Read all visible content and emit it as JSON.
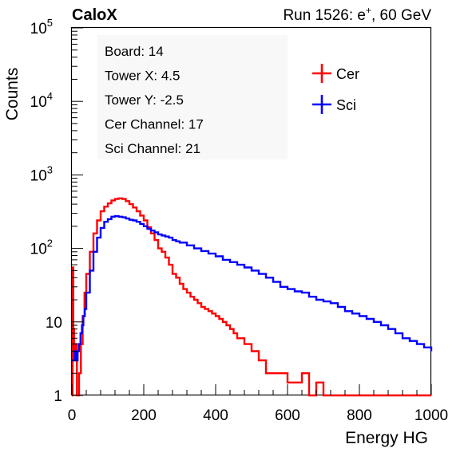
{
  "header": {
    "experiment": "CaloX",
    "run_info": "Run 1526: e",
    "run_sup": "+",
    "run_suffix": ", 60 GeV"
  },
  "info_box": {
    "lines": [
      "Board: 14",
      "Tower X: 4.5",
      "Tower Y: -2.5",
      "Cer Channel: 17",
      "Sci Channel: 21"
    ]
  },
  "chart_data": {
    "type": "line",
    "title": "",
    "xlabel": "Energy HG",
    "ylabel": "Counts",
    "xlim": [
      0,
      1000
    ],
    "ylim": [
      1,
      100000
    ],
    "yscale": "log",
    "grid": false,
    "legend_placement": "top-right",
    "x_ticks": [
      0,
      200,
      400,
      600,
      800,
      1000
    ],
    "x_tick_labels": [
      "0",
      "200",
      "400",
      "600",
      "800",
      "1000"
    ],
    "y_ticks": [
      {
        "value": 1,
        "label": "1",
        "exp": ""
      },
      {
        "value": 10,
        "label": "10",
        "exp": ""
      },
      {
        "value": 100,
        "label": "10",
        "exp": "2"
      },
      {
        "value": 1000,
        "label": "10",
        "exp": "3"
      },
      {
        "value": 10000,
        "label": "10",
        "exp": "4"
      },
      {
        "value": 100000,
        "label": "10",
        "exp": "5"
      }
    ],
    "series": [
      {
        "name": "Cer",
        "color": "#ff0000",
        "points": [
          [
            0,
            1
          ],
          [
            2,
            55
          ],
          [
            4,
            8
          ],
          [
            6,
            3
          ],
          [
            10,
            5
          ],
          [
            14,
            1
          ],
          [
            20,
            2
          ],
          [
            25,
            5
          ],
          [
            30,
            12
          ],
          [
            35,
            25
          ],
          [
            40,
            45
          ],
          [
            50,
            90
          ],
          [
            60,
            160
          ],
          [
            70,
            240
          ],
          [
            80,
            320
          ],
          [
            90,
            370
          ],
          [
            100,
            410
          ],
          [
            110,
            450
          ],
          [
            120,
            470
          ],
          [
            130,
            480
          ],
          [
            140,
            470
          ],
          [
            150,
            440
          ],
          [
            160,
            400
          ],
          [
            170,
            360
          ],
          [
            180,
            320
          ],
          [
            190,
            280
          ],
          [
            200,
            240
          ],
          [
            210,
            195
          ],
          [
            220,
            160
          ],
          [
            230,
            130
          ],
          [
            240,
            100
          ],
          [
            250,
            90
          ],
          [
            260,
            75
          ],
          [
            270,
            60
          ],
          [
            280,
            45
          ],
          [
            290,
            40
          ],
          [
            300,
            33
          ],
          [
            310,
            28
          ],
          [
            320,
            25
          ],
          [
            330,
            22
          ],
          [
            340,
            20
          ],
          [
            350,
            18
          ],
          [
            360,
            16
          ],
          [
            370,
            15
          ],
          [
            380,
            14
          ],
          [
            390,
            13
          ],
          [
            400,
            12
          ],
          [
            410,
            11
          ],
          [
            420,
            10
          ],
          [
            430,
            9
          ],
          [
            440,
            8
          ],
          [
            450,
            7
          ],
          [
            460,
            6
          ],
          [
            470,
            6
          ],
          [
            480,
            5
          ],
          [
            490,
            5
          ],
          [
            500,
            4
          ],
          [
            510,
            4
          ],
          [
            520,
            3
          ],
          [
            530,
            3
          ],
          [
            540,
            2
          ],
          [
            560,
            2
          ],
          [
            580,
            2
          ],
          [
            600,
            1.5
          ],
          [
            620,
            1.5
          ],
          [
            640,
            2
          ],
          [
            660,
            1
          ],
          [
            680,
            1.5
          ],
          [
            700,
            1
          ],
          [
            720,
            1
          ],
          [
            760,
            1
          ],
          [
            800,
            1
          ],
          [
            850,
            1
          ],
          [
            900,
            1
          ],
          [
            950,
            1
          ],
          [
            1000,
            1
          ]
        ]
      },
      {
        "name": "Sci",
        "color": "#0000ff",
        "points": [
          [
            0,
            3
          ],
          [
            4,
            3
          ],
          [
            8,
            4
          ],
          [
            12,
            3
          ],
          [
            16,
            4
          ],
          [
            20,
            5
          ],
          [
            24,
            7
          ],
          [
            28,
            9
          ],
          [
            32,
            12
          ],
          [
            36,
            15
          ],
          [
            40,
            25
          ],
          [
            50,
            50
          ],
          [
            60,
            90
          ],
          [
            70,
            140
          ],
          [
            80,
            190
          ],
          [
            90,
            230
          ],
          [
            100,
            250
          ],
          [
            110,
            270
          ],
          [
            120,
            275
          ],
          [
            130,
            270
          ],
          [
            140,
            265
          ],
          [
            150,
            255
          ],
          [
            160,
            245
          ],
          [
            170,
            240
          ],
          [
            180,
            230
          ],
          [
            190,
            215
          ],
          [
            200,
            200
          ],
          [
            210,
            185
          ],
          [
            220,
            175
          ],
          [
            230,
            165
          ],
          [
            240,
            155
          ],
          [
            250,
            150
          ],
          [
            260,
            145
          ],
          [
            270,
            140
          ],
          [
            280,
            130
          ],
          [
            290,
            125
          ],
          [
            300,
            120
          ],
          [
            320,
            110
          ],
          [
            340,
            100
          ],
          [
            360,
            92
          ],
          [
            380,
            85
          ],
          [
            400,
            78
          ],
          [
            420,
            70
          ],
          [
            440,
            65
          ],
          [
            460,
            60
          ],
          [
            480,
            55
          ],
          [
            500,
            50
          ],
          [
            520,
            45
          ],
          [
            540,
            40
          ],
          [
            560,
            35
          ],
          [
            580,
            30
          ],
          [
            600,
            28
          ],
          [
            620,
            26
          ],
          [
            640,
            25
          ],
          [
            660,
            22
          ],
          [
            680,
            20
          ],
          [
            700,
            19
          ],
          [
            720,
            18
          ],
          [
            740,
            16
          ],
          [
            760,
            14
          ],
          [
            780,
            13
          ],
          [
            800,
            12
          ],
          [
            820,
            11
          ],
          [
            840,
            10
          ],
          [
            860,
            9
          ],
          [
            880,
            8
          ],
          [
            900,
            7
          ],
          [
            920,
            6
          ],
          [
            940,
            5.5
          ],
          [
            960,
            5
          ],
          [
            980,
            4.5
          ],
          [
            1000,
            4
          ]
        ]
      }
    ]
  },
  "colors": {
    "cer": "#ff0000",
    "sci": "#0000ff",
    "info_box_bg": "#f8f8f8"
  }
}
